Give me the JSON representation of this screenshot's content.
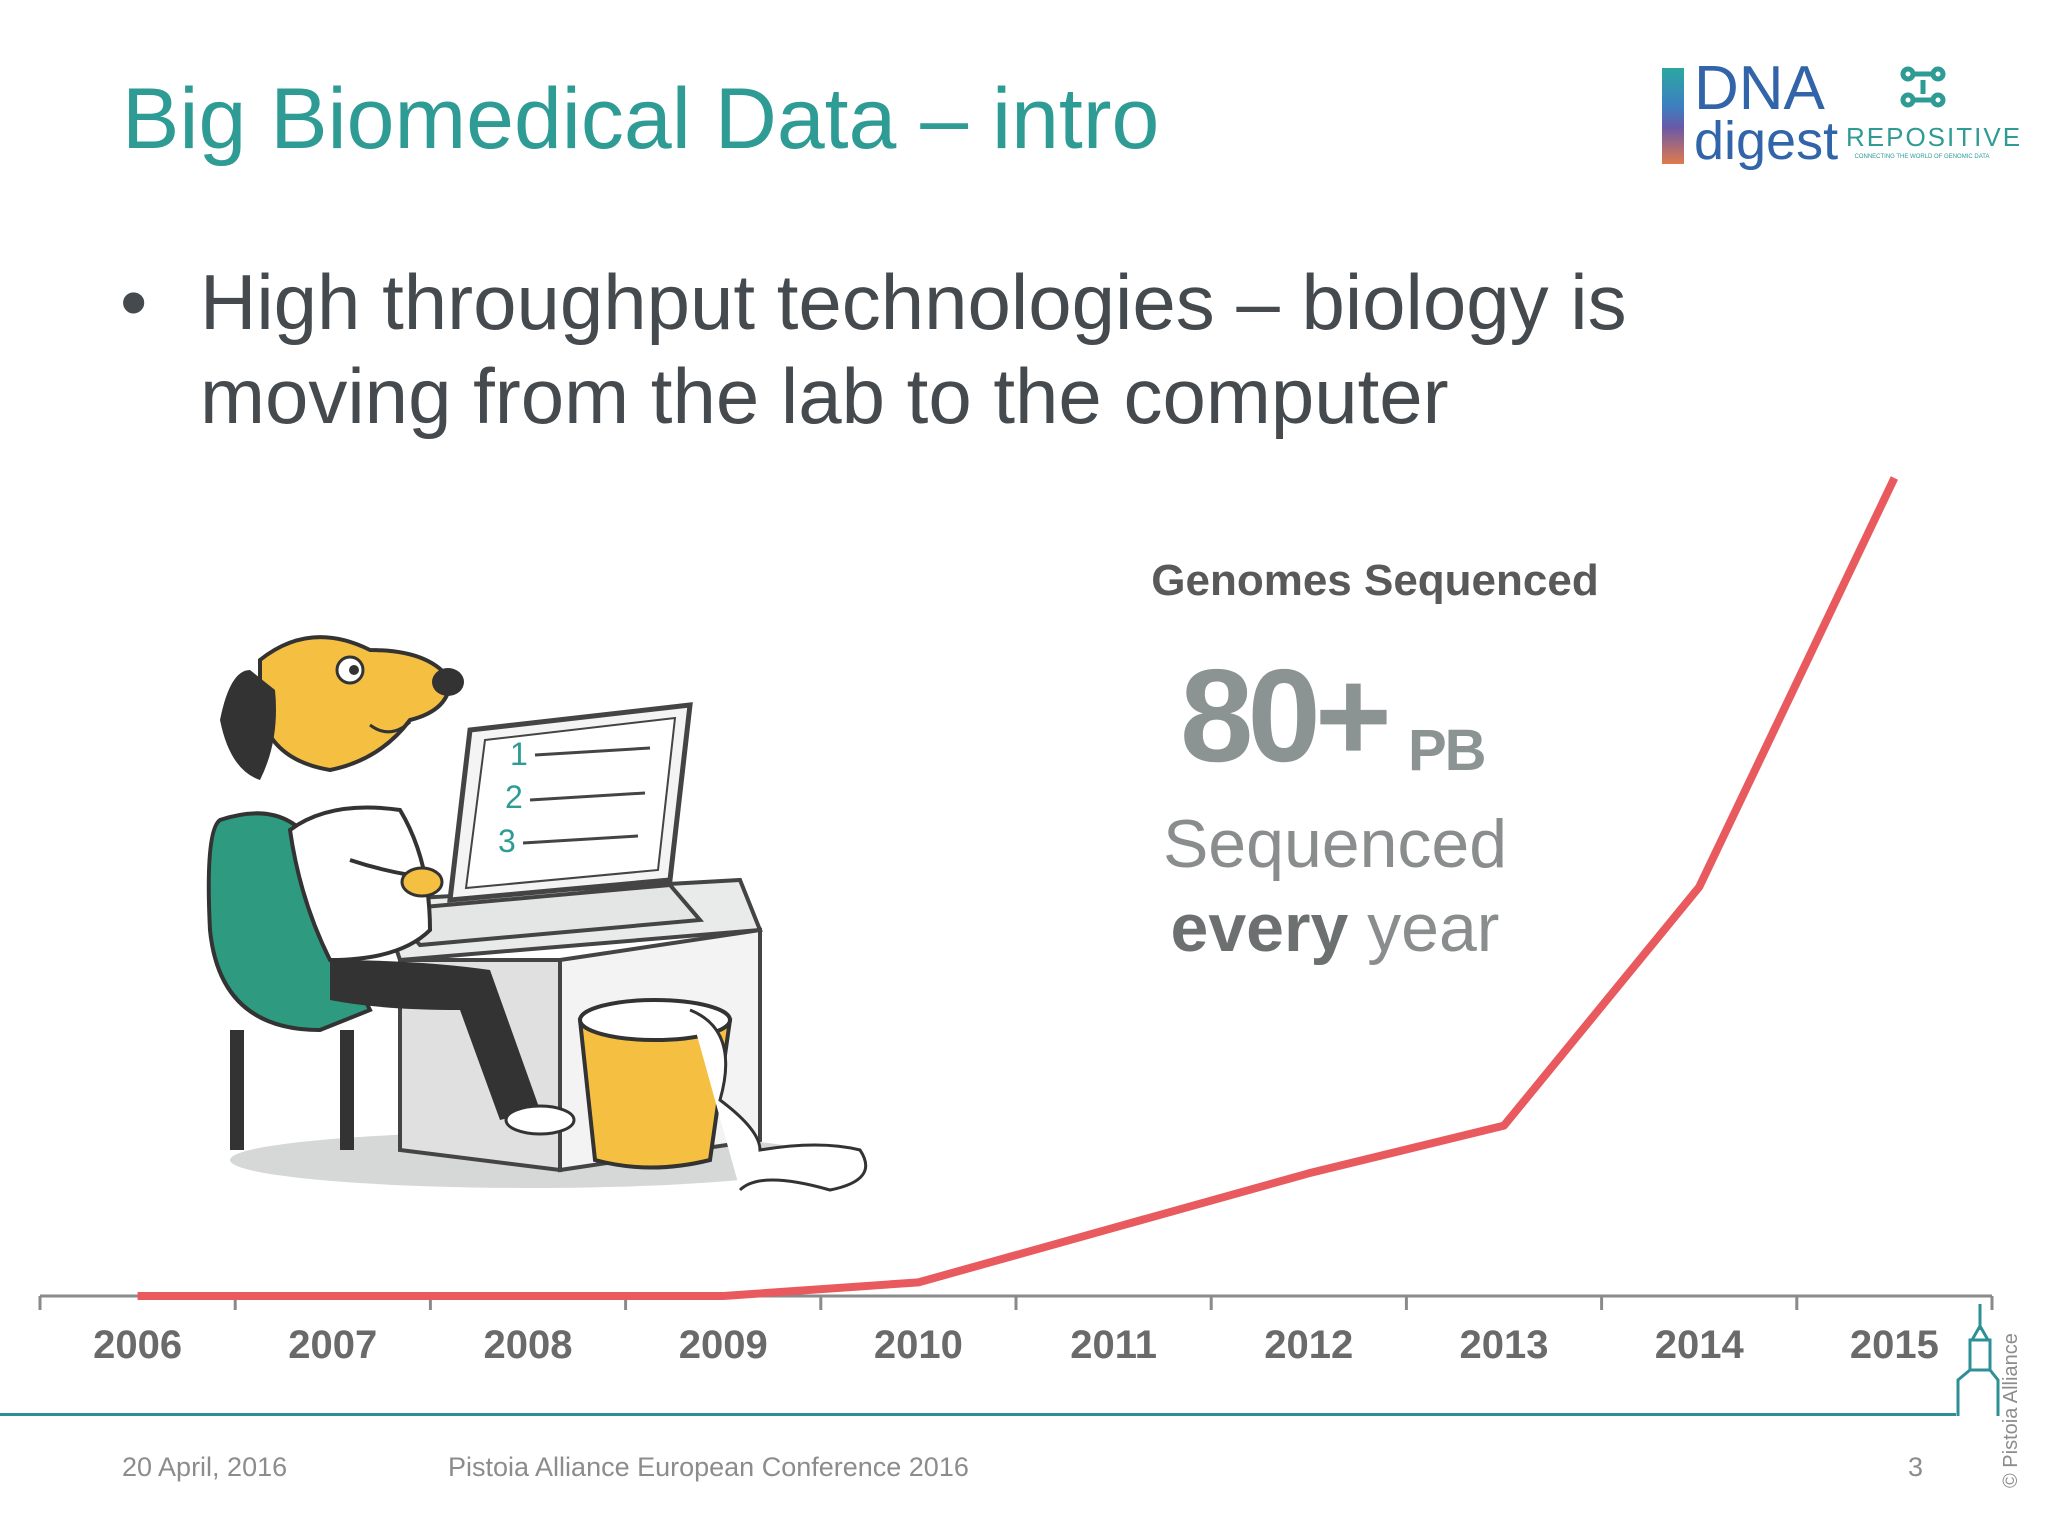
{
  "slide": {
    "title": "Big Biomedical Data – intro",
    "bullet_symbol": "•",
    "bullet_text": "High throughput technologies – biology is moving from the lab to the computer"
  },
  "logos": {
    "dna_digest": {
      "line1": "DNA",
      "line2": "digest",
      "icon": "dna-digest-logo"
    },
    "repositive": {
      "name": "REPOSITIVE",
      "tagline": "CONNECTING THE WORLD OF GENOMIC DATA",
      "icon": "repositive-logo"
    }
  },
  "kpi": {
    "caption": "Genomes Sequenced",
    "value": "80+",
    "unit": "PB",
    "line1": "Sequenced",
    "line2_bold": "every",
    "line2_rest": " year"
  },
  "illustration": {
    "icon": "dog-at-laptop-illustration",
    "screen_numbers": [
      "1",
      "2",
      "3"
    ]
  },
  "chart_data": {
    "type": "line",
    "title": "Genomes Sequenced",
    "categories": [
      "2006",
      "2007",
      "2008",
      "2009",
      "2010",
      "2011",
      "2012",
      "2013",
      "2014",
      "2015"
    ],
    "series": [
      {
        "values": [
          0,
          0,
          0,
          0,
          2,
          10,
          18,
          25,
          60,
          120
        ]
      }
    ],
    "ylim": [
      0,
      120
    ],
    "grid": false,
    "color": "#e85a5e"
  },
  "footer": {
    "date": "20 April, 2016",
    "conference": "Pistoia Alliance European Conference 2016",
    "page": "3",
    "copyright": "© Pistoia Alliance"
  },
  "colors": {
    "accent": "#2e9b94",
    "line": "#e85a5e",
    "text": "#454a4f"
  }
}
